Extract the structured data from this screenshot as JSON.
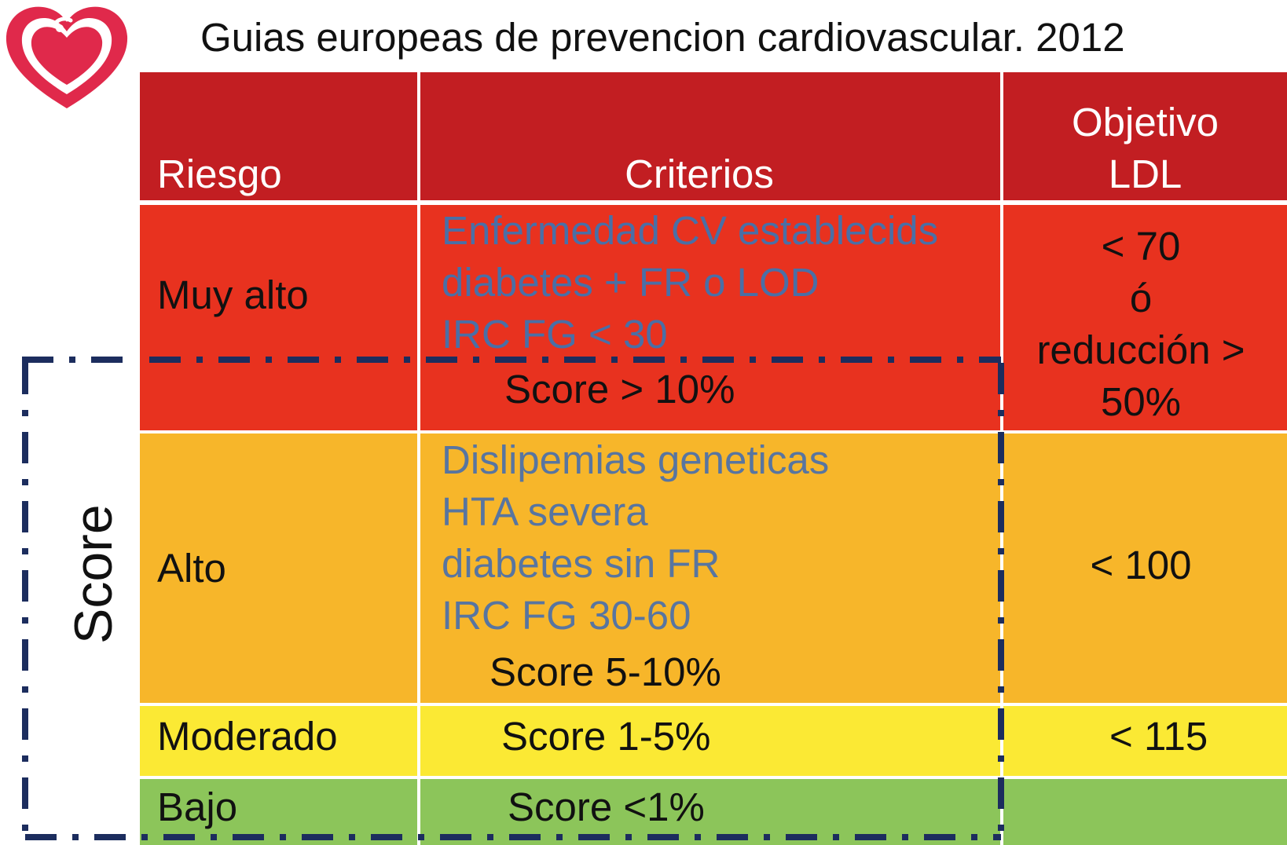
{
  "title": "Guias europeas de prevencion cardiovascular. 2012",
  "header": {
    "riesgo": "Riesgo",
    "criterios": "Criterios",
    "objetivo_line1": "Objetivo",
    "objetivo_line2": "LDL"
  },
  "rows": {
    "muy_alto": {
      "riesgo": "Muy alto",
      "criterios": [
        "Enfermedad CV establecids",
        "diabetes + FR o LOD",
        "IRC FG < 30"
      ],
      "score": "Score > 10%",
      "objetivo": [
        "< 70",
        "ó",
        "reducción >",
        "50%"
      ]
    },
    "alto": {
      "riesgo": "Alto",
      "criterios": [
        "Dislipemias geneticas",
        "HTA severa",
        "diabetes sin FR",
        "IRC FG 30-60"
      ],
      "score": "Score 5-10%",
      "objetivo": "< 100"
    },
    "moderado": {
      "riesgo": "Moderado",
      "score": "Score 1-5%",
      "objetivo": "< 115"
    },
    "bajo": {
      "riesgo": "Bajo",
      "score": "Score <1%",
      "objetivo": ""
    }
  },
  "score_box_label": "Score",
  "colors": {
    "header": "#c21e22",
    "muy_alto": "#e8321f",
    "alto": "#f7b62a",
    "moderado": "#fbe934",
    "bajo": "#8cc55a",
    "criteria_text": "#4a6fa6",
    "dashed_border": "#1c2d5e",
    "logo": "#e0294b"
  },
  "icons": {
    "logo": "heart-logo-icon"
  }
}
